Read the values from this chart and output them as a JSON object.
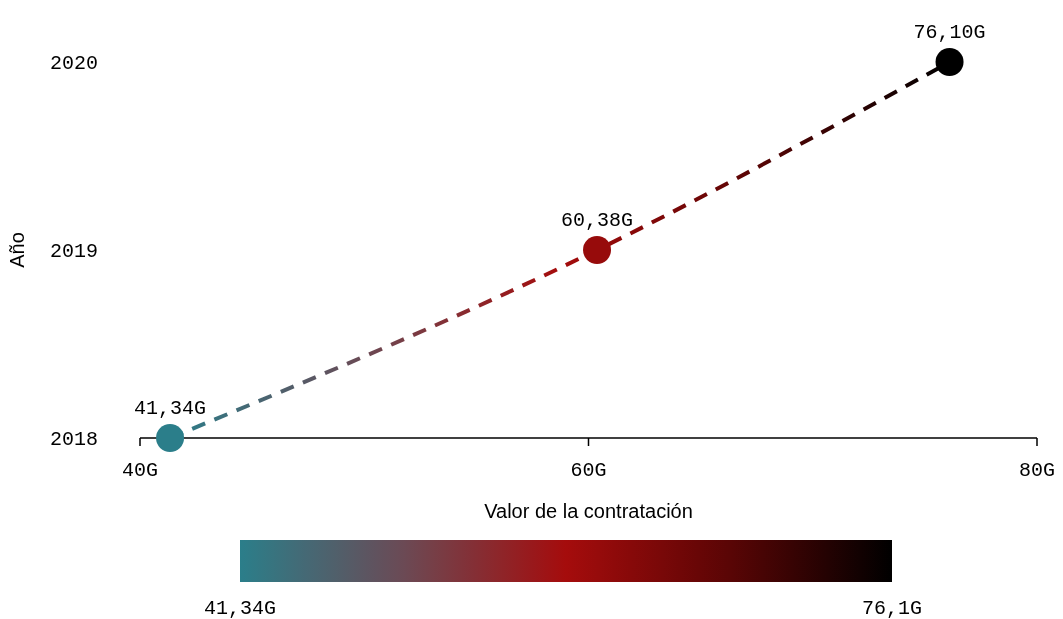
{
  "chart_data": {
    "type": "scatter",
    "xlabel": "Valor de la contratación",
    "ylabel": "Año",
    "x": [
      41.34,
      60.38,
      76.1
    ],
    "values": [
      2018,
      2019,
      2020
    ],
    "annotations": [
      {
        "text": "41,34G",
        "x": 41.34,
        "y": 2018
      },
      {
        "text": "60,38G",
        "x": 60.38,
        "y": 2019
      },
      {
        "text": "76,10G",
        "x": 76.1,
        "y": 2020
      }
    ],
    "cvalues": [
      41.34,
      60.38,
      76.1
    ],
    "clim": [
      41.34,
      76.1
    ],
    "cticks": [
      {
        "value": 41.34,
        "label": "41,34G"
      },
      {
        "value": 76.1,
        "label": "76,1G"
      }
    ],
    "xlim": [
      40,
      80
    ],
    "xticks": [
      {
        "value": 40,
        "label": "40G"
      },
      {
        "value": 60,
        "label": "60G"
      },
      {
        "value": 80,
        "label": "80G"
      }
    ],
    "ylim": [
      2018,
      2020
    ],
    "yticks": [
      2018,
      2019,
      2020
    ],
    "grid": false,
    "marker": "circle",
    "line_style": "dashed"
  }
}
